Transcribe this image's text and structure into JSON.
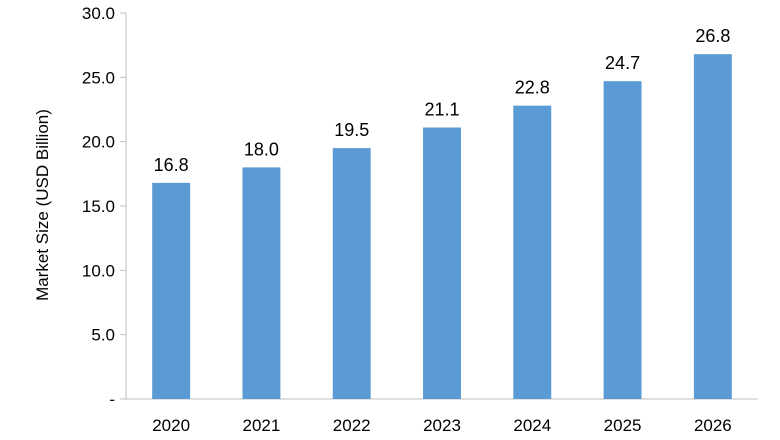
{
  "chart_data": {
    "type": "bar",
    "title": "",
    "xlabel": "",
    "ylabel": "Market Size (USD Billion)",
    "categories": [
      "2020",
      "2021",
      "2022",
      "2023",
      "2024",
      "2025",
      "2026"
    ],
    "values": [
      16.8,
      18.0,
      19.5,
      21.1,
      22.8,
      24.7,
      26.8
    ],
    "value_labels": [
      "16.8",
      "18.0",
      "19.5",
      "21.1",
      "22.8",
      "24.7",
      "26.8"
    ],
    "ylim": [
      0,
      30
    ],
    "y_ticks": [
      0,
      5,
      10,
      15,
      20,
      25,
      30
    ],
    "y_tick_labels": [
      "-",
      "5.0",
      "10.0",
      "15.0",
      "20.0",
      "25.0",
      "30.0"
    ],
    "grid": false,
    "legend": "none",
    "colors": {
      "bar": "#5b9bd5",
      "axis": "#bfbfbf"
    }
  }
}
